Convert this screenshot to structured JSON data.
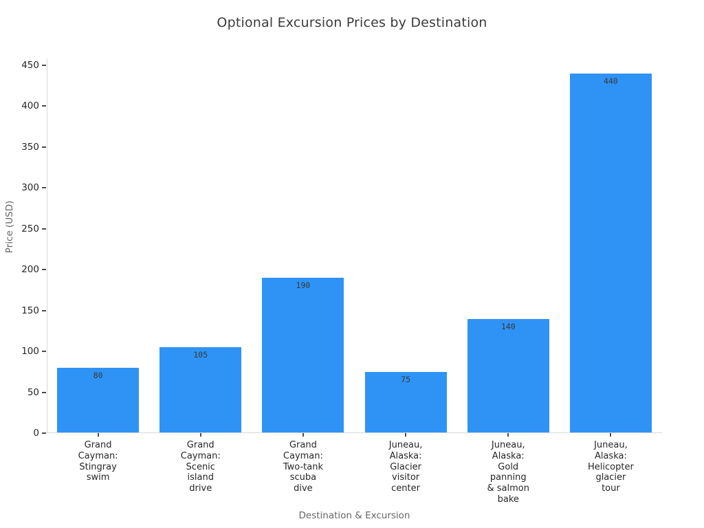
{
  "chart_data": {
    "type": "bar",
    "title": "Optional Excursion Prices by Destination",
    "xlabel": "Destination & Excursion",
    "ylabel": "Price (USD)",
    "categories": [
      "Grand Cayman: Stingray swim",
      "Grand Cayman: Scenic island drive",
      "Grand Cayman: Two-tank scuba dive",
      "Juneau, Alaska: Glacier visitor center",
      "Juneau, Alaska: Gold panning & salmon bake",
      "Juneau, Alaska: Helicopter glacier tour"
    ],
    "tick_labels": [
      "Grand\nCayman:\nStingray\nswim",
      "Grand\nCayman:\nScenic\nisland\ndrive",
      "Grand\nCayman:\nTwo-tank\nscuba\ndive",
      "Juneau,\nAlaska:\nGlacier\nvisitor\ncenter",
      "Juneau,\nAlaska:\nGold\npanning\n& salmon\nbake",
      "Juneau,\nAlaska:\nHelicopter\nglacier\ntour"
    ],
    "values": [
      80,
      105,
      190,
      75,
      140,
      440
    ],
    "value_labels": [
      "80",
      "105",
      "190",
      "75",
      "140",
      "440"
    ],
    "ylim": [
      0,
      450
    ],
    "ytick_step": 50,
    "ytick_labels": [
      "0",
      "50",
      "100",
      "150",
      "200",
      "250",
      "300",
      "350",
      "400",
      "450"
    ],
    "grid": false,
    "legend": null,
    "colors": {
      "bar": "#2E93F5",
      "spine": "#d8d8d8",
      "tick_mark": "#4a4a4a",
      "tick_label": "#262626",
      "title": "#3a3a3a",
      "axis_title": "#666666",
      "value_label": "#383838",
      "background": "#ffffff"
    }
  }
}
